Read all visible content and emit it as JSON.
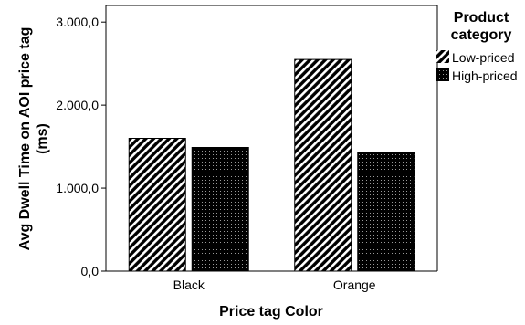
{
  "chart_data": {
    "type": "bar",
    "categories": [
      "Black",
      "Orange"
    ],
    "series": [
      {
        "name": "Low-priced",
        "values": [
          1600,
          2550
        ],
        "pattern": "diagonal-hatch"
      },
      {
        "name": "High-priced",
        "values": [
          1490,
          1435
        ],
        "pattern": "dotted-dark"
      }
    ],
    "xlabel": "Price tag Color",
    "ylabel_line1": "Avg Dwell Time on AOI price tag",
    "ylabel_line2": "(ms)",
    "ylim": [
      0,
      3200
    ],
    "yticks": [
      0,
      1000,
      2000,
      3000
    ],
    "ytick_labels": [
      "0,0",
      "1.000,0",
      "2.000,0",
      "3.000,0"
    ],
    "legend": {
      "title_line1": "Product",
      "title_line2": "category",
      "position": "right"
    },
    "grid": false,
    "colors": {
      "bar_fill": "#000000",
      "hatch": "#ffffff",
      "axis": "#000000"
    }
  }
}
